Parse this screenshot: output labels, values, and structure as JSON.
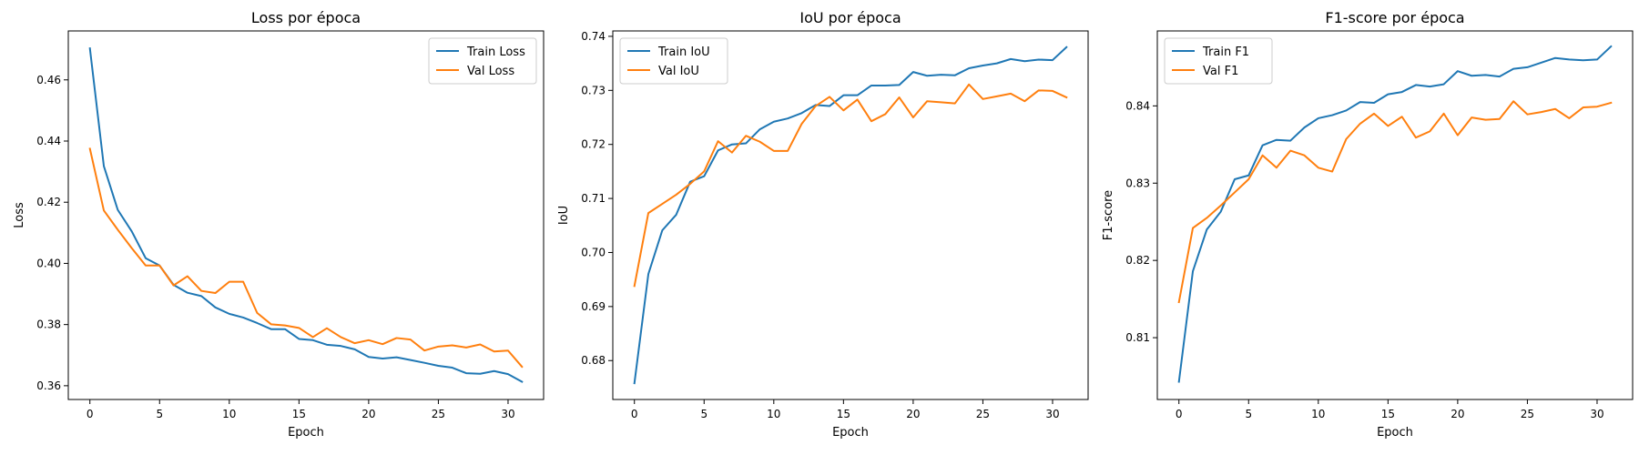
{
  "chart_data": [
    {
      "type": "line",
      "title": "Loss por época",
      "xlabel": "Epoch",
      "ylabel": "Loss",
      "xlim": [
        -1.55,
        32.55
      ],
      "ylim": [
        0.3555,
        0.476
      ],
      "xticks": [
        0,
        5,
        10,
        15,
        20,
        25,
        30
      ],
      "yticks": [
        0.36,
        0.38,
        0.4,
        0.42,
        0.44,
        0.46
      ],
      "xtick_labels": [
        "0",
        "5",
        "10",
        "15",
        "20",
        "25",
        "30"
      ],
      "ytick_labels": [
        "0.36",
        "0.38",
        "0.40",
        "0.42",
        "0.44",
        "0.46"
      ],
      "legend_position": "top-right",
      "grid": false,
      "x": [
        0,
        1,
        2,
        3,
        4,
        5,
        6,
        7,
        8,
        9,
        10,
        11,
        12,
        13,
        14,
        15,
        16,
        17,
        18,
        19,
        20,
        21,
        22,
        23,
        24,
        25,
        26,
        27,
        28,
        29,
        30,
        31
      ],
      "series": [
        {
          "name": "Train Loss",
          "color": "#1f77b4",
          "values": [
            0.4703,
            0.4318,
            0.4175,
            0.4105,
            0.4017,
            0.3993,
            0.393,
            0.3904,
            0.3893,
            0.3856,
            0.3835,
            0.3823,
            0.3805,
            0.3785,
            0.3785,
            0.3753,
            0.3749,
            0.3734,
            0.373,
            0.3719,
            0.3694,
            0.3689,
            0.3693,
            0.3684,
            0.3675,
            0.3665,
            0.3659,
            0.3641,
            0.3639,
            0.3648,
            0.3638,
            0.3613
          ]
        },
        {
          "name": "Val Loss",
          "color": "#ff7f0e",
          "values": [
            0.4375,
            0.4173,
            0.411,
            0.405,
            0.3993,
            0.3993,
            0.3928,
            0.3958,
            0.391,
            0.3903,
            0.394,
            0.394,
            0.3838,
            0.3801,
            0.3797,
            0.3789,
            0.3759,
            0.3788,
            0.3759,
            0.3739,
            0.3749,
            0.3736,
            0.3756,
            0.3751,
            0.3715,
            0.3728,
            0.3732,
            0.3725,
            0.3735,
            0.3712,
            0.3715,
            0.3662
          ]
        }
      ]
    },
    {
      "type": "line",
      "title": "IoU por época",
      "xlabel": "Epoch",
      "ylabel": "IoU",
      "xlim": [
        -1.55,
        32.55
      ],
      "ylim": [
        0.6728,
        0.741
      ],
      "xticks": [
        0,
        5,
        10,
        15,
        20,
        25,
        30
      ],
      "yticks": [
        0.68,
        0.69,
        0.7,
        0.71,
        0.72,
        0.73,
        0.74
      ],
      "xtick_labels": [
        "0",
        "5",
        "10",
        "15",
        "20",
        "25",
        "30"
      ],
      "ytick_labels": [
        "0.68",
        "0.69",
        "0.70",
        "0.71",
        "0.72",
        "0.73",
        "0.74"
      ],
      "legend_position": "top-left",
      "grid": false,
      "x": [
        0,
        1,
        2,
        3,
        4,
        5,
        6,
        7,
        8,
        9,
        10,
        11,
        12,
        13,
        14,
        15,
        16,
        17,
        18,
        19,
        20,
        21,
        22,
        23,
        24,
        25,
        26,
        27,
        28,
        29,
        30,
        31
      ],
      "series": [
        {
          "name": "Train IoU",
          "color": "#1f77b4",
          "values": [
            0.6758,
            0.696,
            0.7041,
            0.707,
            0.7131,
            0.7141,
            0.7189,
            0.72,
            0.7202,
            0.7228,
            0.7242,
            0.7248,
            0.7258,
            0.7273,
            0.7271,
            0.7291,
            0.7291,
            0.7309,
            0.7309,
            0.731,
            0.7334,
            0.7327,
            0.7329,
            0.7328,
            0.7341,
            0.7346,
            0.735,
            0.7358,
            0.7354,
            0.7357,
            0.7356,
            0.738
          ]
        },
        {
          "name": "Val IoU",
          "color": "#ff7f0e",
          "values": [
            0.6938,
            0.7073,
            0.709,
            0.7107,
            0.7127,
            0.715,
            0.7206,
            0.7185,
            0.7216,
            0.7205,
            0.7188,
            0.7188,
            0.7238,
            0.7271,
            0.7288,
            0.7263,
            0.7283,
            0.7243,
            0.7256,
            0.7287,
            0.725,
            0.728,
            0.7278,
            0.7276,
            0.7311,
            0.7284,
            0.7289,
            0.7294,
            0.728,
            0.73,
            0.7299,
            0.7287
          ]
        }
      ]
    },
    {
      "type": "line",
      "title": "F1-score por época",
      "xlabel": "Epoch",
      "ylabel": "F1-score",
      "xlim": [
        -1.55,
        32.55
      ],
      "ylim": [
        0.802,
        0.8497
      ],
      "xticks": [
        0,
        5,
        10,
        15,
        20,
        25,
        30
      ],
      "yticks": [
        0.81,
        0.82,
        0.83,
        0.84
      ],
      "xtick_labels": [
        "0",
        "5",
        "10",
        "15",
        "20",
        "25",
        "30"
      ],
      "ytick_labels": [
        "0.81",
        "0.82",
        "0.83",
        "0.84"
      ],
      "legend_position": "top-left",
      "grid": false,
      "x": [
        0,
        1,
        2,
        3,
        4,
        5,
        6,
        7,
        8,
        9,
        10,
        11,
        12,
        13,
        14,
        15,
        16,
        17,
        18,
        19,
        20,
        21,
        22,
        23,
        24,
        25,
        26,
        27,
        28,
        29,
        30,
        31
      ],
      "series": [
        {
          "name": "Train F1",
          "color": "#1f77b4",
          "values": [
            0.8043,
            0.8186,
            0.824,
            0.8263,
            0.8305,
            0.831,
            0.8349,
            0.8356,
            0.8355,
            0.8372,
            0.8384,
            0.8388,
            0.8394,
            0.8405,
            0.8404,
            0.8415,
            0.8418,
            0.8427,
            0.8425,
            0.8428,
            0.8445,
            0.8439,
            0.844,
            0.8438,
            0.8448,
            0.845,
            0.8456,
            0.8462,
            0.846,
            0.8459,
            0.846,
            0.8477
          ]
        },
        {
          "name": "Val F1",
          "color": "#ff7f0e",
          "values": [
            0.8146,
            0.8242,
            0.8255,
            0.8271,
            0.8288,
            0.8305,
            0.8336,
            0.832,
            0.8342,
            0.8336,
            0.832,
            0.8315,
            0.8357,
            0.8377,
            0.839,
            0.8374,
            0.8386,
            0.8359,
            0.8367,
            0.839,
            0.8362,
            0.8385,
            0.8382,
            0.8383,
            0.8406,
            0.8389,
            0.8392,
            0.8396,
            0.8384,
            0.8398,
            0.8399,
            0.8404
          ]
        }
      ]
    }
  ]
}
